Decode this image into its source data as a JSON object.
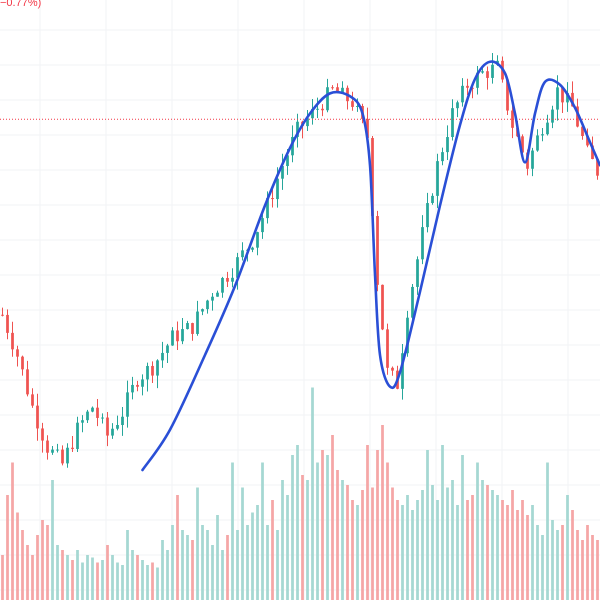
{
  "header": {
    "change_text": "−0.77%)"
  },
  "colors": {
    "up": "#26a69a",
    "down": "#ef5350",
    "up_volume": "#a5d8d2",
    "down_volume": "#f5a6a6",
    "grid": "#f2f3f5",
    "price_line": "#f23645",
    "annotation": "#2a4fd6",
    "text_down": "#f23645"
  },
  "chart_data": {
    "type": "candlestick",
    "title": "",
    "xlabel": "",
    "ylabel": "",
    "grid": true,
    "ylim": [
      0,
      100
    ],
    "current_price_line": 81,
    "volume_ylim": [
      0,
      100
    ],
    "candle_count": 120,
    "price_path": [
      [
        0,
        47
      ],
      [
        3,
        40
      ],
      [
        6,
        31
      ],
      [
        9,
        24
      ],
      [
        12,
        21
      ],
      [
        15,
        27
      ],
      [
        18,
        31
      ],
      [
        21,
        26
      ],
      [
        24,
        30
      ],
      [
        27,
        36
      ],
      [
        30,
        38
      ],
      [
        34,
        43
      ],
      [
        38,
        45
      ],
      [
        42,
        51
      ],
      [
        46,
        55
      ],
      [
        50,
        60
      ],
      [
        53,
        66
      ],
      [
        56,
        73
      ],
      [
        59,
        79
      ],
      [
        62,
        82
      ],
      [
        66,
        86
      ],
      [
        70,
        84
      ],
      [
        73,
        78
      ],
      [
        75,
        53
      ],
      [
        77,
        37
      ],
      [
        79,
        35
      ],
      [
        81,
        48
      ],
      [
        84,
        61
      ],
      [
        87,
        73
      ],
      [
        90,
        82
      ],
      [
        93,
        87
      ],
      [
        96,
        89
      ],
      [
        99,
        90
      ],
      [
        102,
        80
      ],
      [
        105,
        73
      ],
      [
        108,
        80
      ],
      [
        111,
        86
      ],
      [
        114,
        83
      ],
      [
        117,
        75
      ],
      [
        119,
        72
      ]
    ],
    "annotation_curve": [
      [
        28.5,
        20
      ],
      [
        34,
        27
      ],
      [
        41,
        40
      ],
      [
        47,
        52
      ],
      [
        53,
        66
      ],
      [
        58,
        76
      ],
      [
        62,
        82
      ],
      [
        66,
        85.5
      ],
      [
        70,
        85
      ],
      [
        72.5,
        82
      ],
      [
        74,
        73
      ],
      [
        75,
        54
      ],
      [
        76,
        40
      ],
      [
        78,
        34.5
      ],
      [
        80,
        37
      ],
      [
        84,
        51
      ],
      [
        88,
        66
      ],
      [
        92,
        80
      ],
      [
        95,
        88
      ],
      [
        98,
        91
      ],
      [
        101,
        89
      ],
      [
        103,
        82
      ],
      [
        105,
        73.5
      ],
      [
        107,
        82
      ],
      [
        109,
        87.5
      ],
      [
        112,
        87
      ],
      [
        115,
        83
      ],
      [
        118,
        77
      ],
      [
        120,
        73
      ]
    ],
    "volumes": [
      18,
      42,
      55,
      35,
      28,
      22,
      18,
      26,
      32,
      30,
      48,
      22,
      20,
      18,
      16,
      20,
      15,
      18,
      17,
      15,
      16,
      22,
      18,
      15,
      14,
      28,
      20,
      18,
      16,
      14,
      15,
      13,
      24,
      20,
      30,
      42,
      28,
      26,
      24,
      45,
      30,
      28,
      22,
      34,
      20,
      26,
      55,
      28,
      45,
      30,
      35,
      38,
      55,
      30,
      40,
      28,
      48,
      42,
      58,
      62,
      50,
      48,
      85,
      55,
      60,
      58,
      66,
      52,
      48,
      46,
      40,
      38,
      44,
      62,
      45,
      60,
      70,
      55,
      45,
      40,
      38,
      42,
      36,
      40,
      44,
      60,
      46,
      40,
      62,
      45,
      48,
      38,
      58,
      40,
      42,
      55,
      48,
      46,
      44,
      42,
      40,
      38,
      44,
      36,
      40,
      34,
      38,
      30,
      26,
      55,
      32,
      28,
      30,
      42,
      36,
      28,
      24,
      30,
      26,
      24
    ]
  }
}
